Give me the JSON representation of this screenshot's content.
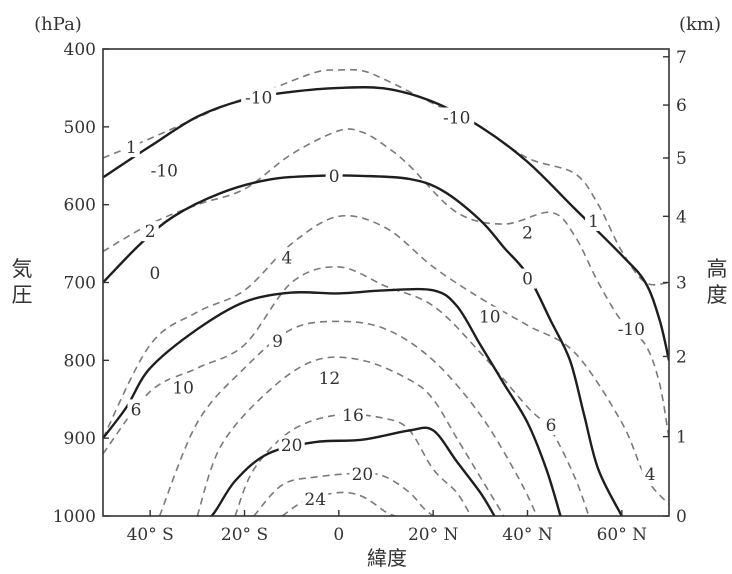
{
  "chart_data": {
    "type": "contour",
    "title": "",
    "xlabel": "緯度",
    "ylabel_left": [
      "気",
      "圧"
    ],
    "ylabel_right": [
      "高",
      "度"
    ],
    "left_unit": "(hPa)",
    "right_unit": "(km)",
    "xlim": [
      -50,
      70
    ],
    "ylim_pressure": [
      1000,
      400
    ],
    "x_ticks": [
      {
        "value": -40,
        "label": "40° S"
      },
      {
        "value": -20,
        "label": "20° S"
      },
      {
        "value": 0,
        "label": "0"
      },
      {
        "value": 20,
        "label": "20° N"
      },
      {
        "value": 40,
        "label": "40° N"
      },
      {
        "value": 60,
        "label": "60° N"
      }
    ],
    "y_ticks_left": [
      {
        "value": 400,
        "label": "400"
      },
      {
        "value": 500,
        "label": "500"
      },
      {
        "value": 600,
        "label": "600"
      },
      {
        "value": 700,
        "label": "700"
      },
      {
        "value": 800,
        "label": "800"
      },
      {
        "value": 900,
        "label": "900"
      },
      {
        "value": 1000,
        "label": "1000"
      }
    ],
    "y_ticks_right": [
      {
        "pressure": 1000,
        "label": "0"
      },
      {
        "pressure": 898,
        "label": "1"
      },
      {
        "pressure": 795,
        "label": "2"
      },
      {
        "pressure": 700,
        "label": "3"
      },
      {
        "pressure": 615,
        "label": "4"
      },
      {
        "pressure": 540,
        "label": "5"
      },
      {
        "pressure": 472,
        "label": "6"
      },
      {
        "pressure": 410,
        "label": "7"
      }
    ],
    "solid_contours": [
      {
        "name": "-10",
        "points": [
          [
            -50,
            565
          ],
          [
            -40,
            525
          ],
          [
            -30,
            487
          ],
          [
            -20,
            465
          ],
          [
            -10,
            455
          ],
          [
            0,
            450
          ],
          [
            10,
            451
          ],
          [
            20,
            468
          ],
          [
            30,
            500
          ],
          [
            40,
            545
          ],
          [
            50,
            605
          ],
          [
            60,
            665
          ],
          [
            65,
            700
          ],
          [
            68,
            748
          ],
          [
            70,
            800
          ]
        ]
      },
      {
        "name": "0",
        "points": [
          [
            -50,
            700
          ],
          [
            -42,
            650
          ],
          [
            -35,
            615
          ],
          [
            -25,
            585
          ],
          [
            -15,
            568
          ],
          [
            -5,
            563
          ],
          [
            5,
            563
          ],
          [
            15,
            567
          ],
          [
            22,
            582
          ],
          [
            30,
            620
          ],
          [
            35,
            655
          ],
          [
            40,
            690
          ],
          [
            45,
            750
          ],
          [
            49,
            800
          ],
          [
            52,
            870
          ],
          [
            55,
            940
          ],
          [
            60,
            1000
          ]
        ]
      },
      {
        "name": "10",
        "points": [
          [
            -50,
            900
          ],
          [
            -45,
            860
          ],
          [
            -40,
            810
          ],
          [
            -30,
            760
          ],
          [
            -20,
            725
          ],
          [
            -10,
            713
          ],
          [
            0,
            714
          ],
          [
            10,
            710
          ],
          [
            20,
            710
          ],
          [
            25,
            730
          ],
          [
            30,
            780
          ],
          [
            35,
            830
          ],
          [
            40,
            880
          ],
          [
            44,
            940
          ],
          [
            47,
            1000
          ]
        ]
      },
      {
        "name": "20",
        "points": [
          [
            -30,
            1000
          ],
          [
            -27,
            1000
          ],
          [
            -22,
            955
          ],
          [
            -15,
            920
          ],
          [
            -5,
            905
          ],
          [
            5,
            902
          ],
          [
            15,
            890
          ],
          [
            20,
            890
          ],
          [
            25,
            930
          ],
          [
            30,
            970
          ],
          [
            33,
            1000
          ]
        ]
      }
    ],
    "dashed_contours": [
      {
        "name": "1",
        "points": [
          [
            -50,
            540
          ],
          [
            -40,
            515
          ],
          [
            -25,
            475
          ],
          [
            -15,
            453
          ],
          [
            -5,
            430
          ],
          [
            0,
            427
          ],
          [
            5,
            428
          ],
          [
            10,
            440
          ],
          [
            20,
            470
          ],
          [
            30,
            500
          ],
          [
            40,
            540
          ],
          [
            50,
            560
          ],
          [
            55,
            600
          ],
          [
            60,
            660
          ],
          [
            65,
            700
          ],
          [
            70,
            700
          ]
        ]
      },
      {
        "name": "2",
        "points": [
          [
            -50,
            660
          ],
          [
            -40,
            625
          ],
          [
            -30,
            600
          ],
          [
            -20,
            580
          ],
          [
            -10,
            535
          ],
          [
            0,
            505
          ],
          [
            5,
            507
          ],
          [
            10,
            525
          ],
          [
            15,
            550
          ],
          [
            25,
            610
          ],
          [
            35,
            625
          ],
          [
            45,
            610
          ],
          [
            50,
            640
          ],
          [
            55,
            700
          ],
          [
            60,
            750
          ],
          [
            65,
            780
          ],
          [
            68,
            830
          ],
          [
            70,
            900
          ]
        ]
      },
      {
        "name": "4",
        "points": [
          [
            -50,
            900
          ],
          [
            -40,
            780
          ],
          [
            -30,
            738
          ],
          [
            -20,
            710
          ],
          [
            -10,
            650
          ],
          [
            0,
            615
          ],
          [
            10,
            630
          ],
          [
            20,
            680
          ],
          [
            30,
            720
          ],
          [
            40,
            755
          ],
          [
            50,
            790
          ],
          [
            60,
            880
          ],
          [
            65,
            950
          ],
          [
            70,
            985
          ]
        ]
      },
      {
        "name": "6",
        "points": [
          [
            -50,
            920
          ],
          [
            -40,
            840
          ],
          [
            -30,
            810
          ],
          [
            -20,
            780
          ],
          [
            -10,
            700
          ],
          [
            0,
            680
          ],
          [
            10,
            705
          ],
          [
            20,
            730
          ],
          [
            30,
            790
          ],
          [
            40,
            860
          ],
          [
            45,
            890
          ],
          [
            50,
            950
          ],
          [
            53,
            1000
          ]
        ]
      },
      {
        "name": "9",
        "points": [
          [
            -38,
            1000
          ],
          [
            -30,
            880
          ],
          [
            -20,
            810
          ],
          [
            -10,
            760
          ],
          [
            0,
            750
          ],
          [
            10,
            760
          ],
          [
            20,
            800
          ],
          [
            30,
            870
          ],
          [
            38,
            950
          ],
          [
            42,
            1000
          ]
        ]
      },
      {
        "name": "12",
        "points": [
          [
            -30,
            1000
          ],
          [
            -25,
            910
          ],
          [
            -15,
            840
          ],
          [
            -5,
            800
          ],
          [
            5,
            800
          ],
          [
            15,
            825
          ],
          [
            20,
            850
          ],
          [
            25,
            900
          ],
          [
            30,
            950
          ],
          [
            35,
            1000
          ]
        ]
      },
      {
        "name": "16",
        "points": [
          [
            -22,
            1000
          ],
          [
            -18,
            940
          ],
          [
            -10,
            890
          ],
          [
            0,
            870
          ],
          [
            10,
            875
          ],
          [
            15,
            890
          ],
          [
            20,
            940
          ],
          [
            25,
            970
          ],
          [
            28,
            1000
          ]
        ]
      },
      {
        "name": "20",
        "points": [
          [
            -18,
            1000
          ],
          [
            -12,
            960
          ],
          [
            -5,
            950
          ],
          [
            5,
            945
          ],
          [
            10,
            950
          ],
          [
            15,
            970
          ],
          [
            18,
            990
          ],
          [
            20,
            1000
          ]
        ]
      },
      {
        "name": "24",
        "points": [
          [
            -12,
            1000
          ],
          [
            -7,
            980
          ],
          [
            0,
            970
          ],
          [
            5,
            975
          ],
          [
            10,
            995
          ],
          [
            12,
            1000
          ]
        ]
      }
    ],
    "contour_labels": [
      {
        "text": "-10",
        "x": -17,
        "p": 462
      },
      {
        "text": "-10",
        "x": 25,
        "p": 488
      },
      {
        "text": "-10",
        "x": -37,
        "p": 556
      },
      {
        "text": "-10",
        "x": 62,
        "p": 760
      },
      {
        "text": "0",
        "x": -1,
        "p": 563
      },
      {
        "text": "0",
        "x": -39,
        "p": 688
      },
      {
        "text": "0",
        "x": 40,
        "p": 695
      },
      {
        "text": "10",
        "x": 32,
        "p": 744
      },
      {
        "text": "10",
        "x": -33,
        "p": 835
      },
      {
        "text": "20",
        "x": -10,
        "p": 909
      },
      {
        "text": "1",
        "x": -44,
        "p": 526
      },
      {
        "text": "1",
        "x": 54,
        "p": 621
      },
      {
        "text": "2",
        "x": -40,
        "p": 634
      },
      {
        "text": "2",
        "x": 40,
        "p": 636
      },
      {
        "text": "4",
        "x": -11,
        "p": 668
      },
      {
        "text": "4",
        "x": 66,
        "p": 946
      },
      {
        "text": "6",
        "x": -43,
        "p": 863
      },
      {
        "text": "6",
        "x": 45,
        "p": 883
      },
      {
        "text": "9",
        "x": -13,
        "p": 775
      },
      {
        "text": "12",
        "x": -2,
        "p": 823
      },
      {
        "text": "16",
        "x": 3,
        "p": 870
      },
      {
        "text": "20",
        "x": 5,
        "p": 946
      },
      {
        "text": "24",
        "x": -5,
        "p": 978
      }
    ]
  }
}
